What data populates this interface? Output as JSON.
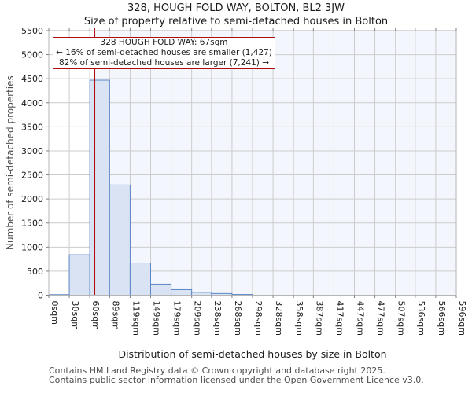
{
  "header": {
    "title": "328, HOUGH FOLD WAY, BOLTON, BL2 3JW",
    "subtitle": "Size of property relative to semi-detached houses in Bolton"
  },
  "annotation": {
    "line1": "328 HOUGH FOLD WAY: 67sqm",
    "line2": "← 16% of semi-detached houses are smaller (1,427)",
    "line3": "82% of semi-detached houses are larger (7,241) →"
  },
  "chart_data": {
    "type": "bar",
    "title": "328, HOUGH FOLD WAY, BOLTON, BL2 3JW",
    "subtitle": "Size of property relative to semi-detached houses in Bolton",
    "xlabel": "Distribution of semi-detached houses by size in Bolton",
    "ylabel": "Number of semi-detached properties",
    "bin_edges_sqm": [
      0,
      30,
      60,
      89,
      119,
      149,
      179,
      209,
      238,
      268,
      298,
      328,
      358,
      387,
      417,
      447,
      477,
      507,
      536,
      566,
      596
    ],
    "x_tick_labels": [
      "0sqm",
      "30sqm",
      "60sqm",
      "89sqm",
      "119sqm",
      "149sqm",
      "179sqm",
      "209sqm",
      "238sqm",
      "268sqm",
      "298sqm",
      "328sqm",
      "358sqm",
      "387sqm",
      "417sqm",
      "447sqm",
      "477sqm",
      "507sqm",
      "536sqm",
      "566sqm",
      "596sqm"
    ],
    "values": [
      12,
      840,
      4470,
      2290,
      670,
      230,
      115,
      60,
      35,
      15,
      0,
      0,
      0,
      0,
      0,
      0,
      0,
      0,
      0,
      0
    ],
    "marker": {
      "sqm": 67,
      "label": "328 HOUGH FOLD WAY: 67sqm"
    },
    "pct_smaller": 16,
    "count_smaller": "1,427",
    "pct_larger": 82,
    "count_larger": "7,241",
    "ylim": [
      0,
      5500
    ],
    "y_tick_step": 500,
    "y_tick_labels": [
      "0",
      "500",
      "1000",
      "1500",
      "2000",
      "2500",
      "3000",
      "3500",
      "4000",
      "4500",
      "5000",
      "5500"
    ],
    "grid": true,
    "legend": null
  },
  "footer": {
    "line1": "Contains HM Land Registry data © Crown copyright and database right 2025.",
    "line2": "Contains public sector information licensed under the Open Government Licence v3.0."
  },
  "colors": {
    "bar_fill": "#d9e3f4",
    "bar_border": "#5b87c5",
    "marker_line": "#b00b0e",
    "annotation_border": "#b00b0e",
    "annotation_bg": "#ffffff",
    "shade_right_of_marker": "#f3f6fc",
    "gridline": "#cccccc",
    "plot_border": "#b5b5b5",
    "tick": "#808080",
    "tick_label": "#1a1a1a"
  }
}
